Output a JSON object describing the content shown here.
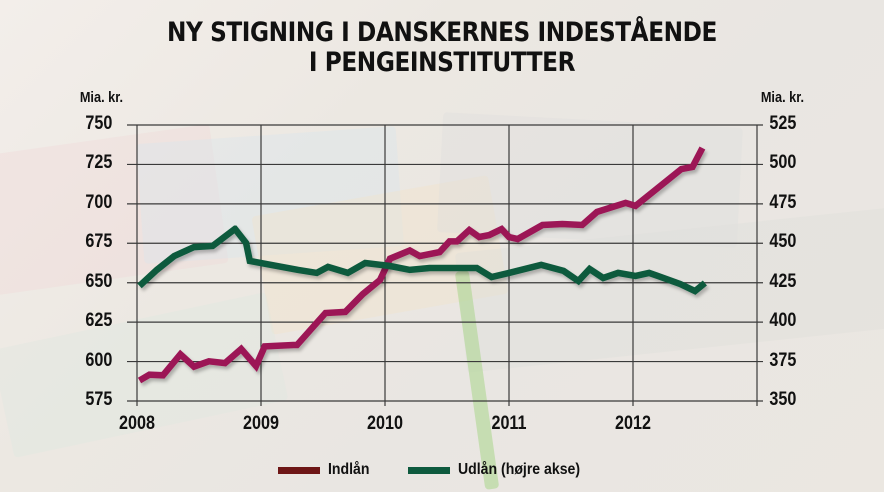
{
  "chart_data": {
    "type": "line",
    "title": "NY STIGNING I DANSKERNES INDESTÅENDE I PENGEINSTITUTTER",
    "title_lines": [
      "NY STIGNING I DANSKERNES INDESTÅENDE",
      "I PENGEINSTITUTTER"
    ],
    "xlabel": "",
    "ylabel_left": "Mia. kr.",
    "ylabel_right": "Mia. kr.",
    "x_ticks": [
      "2008",
      "2009",
      "2010",
      "2011",
      "2012"
    ],
    "y_left_ticks": [
      750,
      725,
      700,
      675,
      650,
      625,
      600,
      575
    ],
    "y_right_ticks": [
      525,
      500,
      475,
      450,
      425,
      400,
      375,
      350
    ],
    "ylim_left": [
      575,
      750
    ],
    "ylim_right": [
      350,
      525
    ],
    "xlim": [
      2008.0,
      2013.0
    ],
    "grid": true,
    "legend_position": "bottom",
    "series": [
      {
        "name": "Indlån",
        "axis": "left",
        "line_color": "#9c1856",
        "legend_color": "#6e1616",
        "points": [
          [
            2008.02,
            588.0
          ],
          [
            2008.1,
            591.7
          ],
          [
            2008.21,
            591.3
          ],
          [
            2008.35,
            604.6
          ],
          [
            2008.46,
            596.8
          ],
          [
            2008.58,
            600.2
          ],
          [
            2008.71,
            599.0
          ],
          [
            2008.84,
            608.0
          ],
          [
            2008.96,
            597.2
          ],
          [
            2009.03,
            609.6
          ],
          [
            2009.26,
            610.5
          ],
          [
            2009.29,
            610.5
          ],
          [
            2009.52,
            630.8
          ],
          [
            2009.68,
            631.5
          ],
          [
            2009.82,
            642.7
          ],
          [
            2009.96,
            651.7
          ],
          [
            2010.04,
            665.2
          ],
          [
            2010.2,
            670.4
          ],
          [
            2010.28,
            666.9
          ],
          [
            2010.44,
            669.4
          ],
          [
            2010.52,
            676.2
          ],
          [
            2010.58,
            676.2
          ],
          [
            2010.68,
            683.4
          ],
          [
            2010.76,
            679.0
          ],
          [
            2010.84,
            680.2
          ],
          [
            2010.94,
            684.0
          ],
          [
            2011.0,
            679.0
          ],
          [
            2011.07,
            677.7
          ],
          [
            2011.27,
            686.6
          ],
          [
            2011.43,
            687.2
          ],
          [
            2011.59,
            686.6
          ],
          [
            2011.71,
            694.9
          ],
          [
            2011.94,
            700.6
          ],
          [
            2012.02,
            698.7
          ],
          [
            2012.18,
            708.8
          ],
          [
            2012.39,
            722.1
          ],
          [
            2012.48,
            723.4
          ],
          [
            2012.56,
            735.4
          ]
        ]
      },
      {
        "name": "Udlån (højre akse)",
        "axis": "right",
        "line_color": "#0e5a3e",
        "legend_color": "#0e5a3e",
        "points": [
          [
            2008.02,
            423.0
          ],
          [
            2008.16,
            433.1
          ],
          [
            2008.3,
            441.9
          ],
          [
            2008.46,
            447.6
          ],
          [
            2008.61,
            448.3
          ],
          [
            2008.79,
            459.1
          ],
          [
            2008.88,
            450.2
          ],
          [
            2008.91,
            438.8
          ],
          [
            2009.3,
            433.1
          ],
          [
            2009.45,
            431.2
          ],
          [
            2009.54,
            435.0
          ],
          [
            2009.7,
            431.2
          ],
          [
            2009.84,
            437.5
          ],
          [
            2010.04,
            435.6
          ],
          [
            2010.2,
            433.1
          ],
          [
            2010.36,
            434.3
          ],
          [
            2010.74,
            434.3
          ],
          [
            2010.86,
            428.6
          ],
          [
            2011.0,
            431.2
          ],
          [
            2011.26,
            436.3
          ],
          [
            2011.44,
            432.5
          ],
          [
            2011.56,
            426.1
          ],
          [
            2011.65,
            433.7
          ],
          [
            2011.76,
            428.0
          ],
          [
            2011.88,
            431.2
          ],
          [
            2012.02,
            429.3
          ],
          [
            2012.13,
            431.2
          ],
          [
            2012.2,
            429.3
          ],
          [
            2012.38,
            424.2
          ],
          [
            2012.5,
            419.7
          ],
          [
            2012.58,
            424.8
          ]
        ]
      }
    ]
  },
  "legend": {
    "items": [
      {
        "label": "Indlån",
        "color": "#6e1616"
      },
      {
        "label": "Udlån (højre akse)",
        "color": "#0e5a3e"
      }
    ]
  }
}
